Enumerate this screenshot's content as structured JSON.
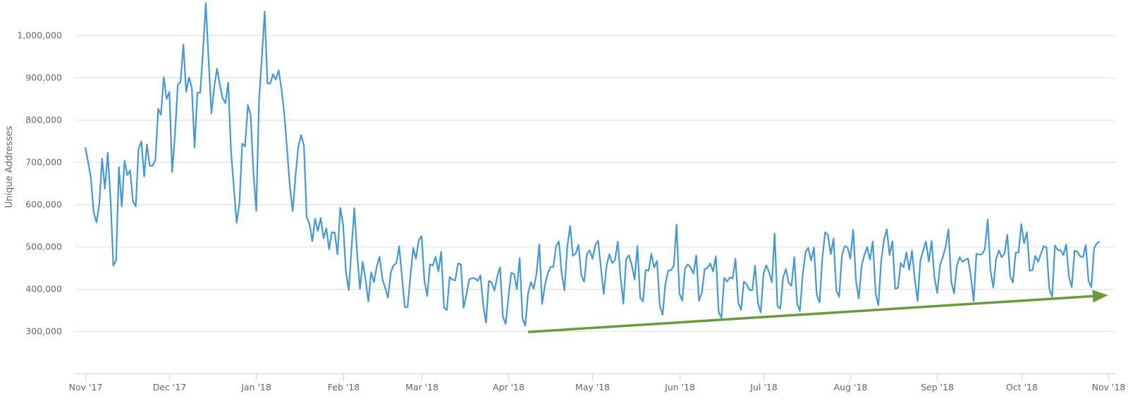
{
  "chart_data": {
    "type": "line",
    "title": "",
    "xlabel": "",
    "ylabel": "Unique Addresses",
    "ylim": [
      200000,
      1083000
    ],
    "xlim": [
      "2017-11-01",
      "2018-11-03"
    ],
    "grid": {
      "horizontal": true,
      "vertical": false
    },
    "legend": "none",
    "y_ticks": [
      {
        "value": 300000,
        "label": "300,000"
      },
      {
        "value": 400000,
        "label": "400,000"
      },
      {
        "value": 500000,
        "label": "500,000"
      },
      {
        "value": 600000,
        "label": "600,000"
      },
      {
        "value": 700000,
        "label": "700,000"
      },
      {
        "value": 800000,
        "label": "800,000"
      },
      {
        "value": 900000,
        "label": "900,000"
      },
      {
        "value": 1000000,
        "label": "1,000,000"
      }
    ],
    "x_ticks": [
      {
        "date": "2017-11-01",
        "label": "Nov '17"
      },
      {
        "date": "2017-12-01",
        "label": "Dec '17"
      },
      {
        "date": "2018-01-01",
        "label": "Jan '18"
      },
      {
        "date": "2018-02-01",
        "label": "Feb '18"
      },
      {
        "date": "2018-03-01",
        "label": "Mar '18"
      },
      {
        "date": "2018-04-01",
        "label": "Apr '18"
      },
      {
        "date": "2018-05-01",
        "label": "May '18"
      },
      {
        "date": "2018-06-01",
        "label": "Jun '18"
      },
      {
        "date": "2018-07-01",
        "label": "Jul '18"
      },
      {
        "date": "2018-08-01",
        "label": "Aug '18"
      },
      {
        "date": "2018-09-01",
        "label": "Sep '18"
      },
      {
        "date": "2018-10-01",
        "label": "Oct '18"
      },
      {
        "date": "2018-11-01",
        "label": "Nov '18"
      }
    ],
    "series": [
      {
        "color": "#4499d0",
        "daily_values_by_month": [
          {
            "month": "2017-11",
            "values": [
              735000,
              700000,
              663000,
              581000,
              557000,
              602000,
              708000,
              637000,
              722000,
              612000,
              455000,
              468000,
              688000,
              595000,
              703000,
              669000,
              680000,
              607000,
              595000,
              730000,
              749000,
              666000,
              742000,
              691000,
              691000,
              705000,
              826000,
              812000,
              901000,
              849000
            ]
          },
          {
            "month": "2017-12",
            "values": [
              866000,
              676000,
              765000,
              883000,
              890000,
              978000,
              866000,
              900000,
              875000,
              734000,
              864000,
              864000,
              963000,
              1076000,
              940000,
              815000,
              878000,
              921000,
              883000,
              851000,
              839000,
              888000,
              725000,
              641000,
              556000,
              602000,
              744000,
              737000,
              835000,
              812000,
              675000
            ]
          },
          {
            "month": "2018-01",
            "values": [
              584000,
              849000,
              946000,
              1056000,
              886000,
              886000,
              908000,
              895000,
              917000,
              873000,
              815000,
              730000,
              641000,
              584000,
              666000,
              736000,
              764000,
              739000,
              570000,
              553000,
              513000,
              566000,
              537000,
              568000,
              520000,
              543000,
              494000,
              534000,
              533000,
              482000,
              592000
            ]
          },
          {
            "month": "2018-02",
            "values": [
              552000,
              439000,
              397000,
              494000,
              591000,
              483000,
              400000,
              464000,
              422000,
              370000,
              439000,
              416000,
              453000,
              476000,
              423000,
              403000,
              379000,
              439000,
              456000,
              460000,
              501000,
              428000,
              357000,
              357000,
              428000,
              497000,
              471000,
              515000
            ]
          },
          {
            "month": "2018-03",
            "values": [
              525000,
              419000,
              383000,
              458000,
              455000,
              476000,
              441000,
              488000,
              356000,
              350000,
              428000,
              422000,
              420000,
              460000,
              458000,
              355000,
              386000,
              423000,
              425000,
              425000,
              419000,
              432000,
              361000,
              320000,
              419000,
              415000,
              396000,
              429000,
              451000,
              334000,
              317000
            ]
          },
          {
            "month": "2018-04",
            "values": [
              381000,
              438000,
              435000,
              399000,
              473000,
              331000,
              313000,
              390000,
              416000,
              400000,
              436000,
              505000,
              364000,
              408000,
              436000,
              452000,
              452000,
              501000,
              512000,
              436000,
              397000,
              499000,
              549000,
              478000,
              484000,
              504000,
              431000,
              417000,
              483000,
              491000
            ]
          },
          {
            "month": "2018-05",
            "values": [
              471000,
              504000,
              514000,
              450000,
              388000,
              455000,
              482000,
              461000,
              468000,
              512000,
              428000,
              365000,
              471000,
              479000,
              457000,
              422000,
              501000,
              379000,
              370000,
              445000,
              443000,
              483000,
              450000,
              466000,
              359000,
              339000,
              411000,
              443000,
              444000,
              455000,
              552000
            ]
          },
          {
            "month": "2018-06",
            "values": [
              389000,
              372000,
              448000,
              458000,
              450000,
              436000,
              479000,
              372000,
              390000,
              446000,
              450000,
              460000,
              441000,
              477000,
              345000,
              331000,
              426000,
              417000,
              427000,
              424000,
              471000,
              367000,
              350000,
              417000,
              411000,
              397000,
              397000,
              455000,
              368000,
              344000
            ]
          },
          {
            "month": "2018-07",
            "values": [
              436000,
              456000,
              439000,
              415000,
              531000,
              359000,
              353000,
              427000,
              447000,
              414000,
              407000,
              475000,
              364000,
              348000,
              433000,
              487000,
              497000,
              467000,
              498000,
              386000,
              368000,
              472000,
              534000,
              527000,
              482000,
              519000,
              396000,
              381000,
              480000,
              501000,
              498000
            ]
          },
          {
            "month": "2018-08",
            "values": [
              471000,
              540000,
              420000,
              377000,
              454000,
              480000,
              499000,
              469000,
              512000,
              390000,
              361000,
              466000,
              516000,
              541000,
              480000,
              513000,
              400000,
              403000,
              461000,
              451000,
              486000,
              445000,
              490000,
              422000,
              371000,
              467000,
              491000,
              512000,
              465000,
              513000,
              428000
            ]
          },
          {
            "month": "2018-09",
            "values": [
              390000,
              456000,
              476000,
              499000,
              541000,
              417000,
              389000,
              454000,
              475000,
              464000,
              469000,
              472000,
              430000,
              371000,
              483000,
              481000,
              482000,
              494000,
              564000,
              444000,
              403000,
              471000,
              491000,
              475000,
              483000,
              528000,
              430000,
              415000,
              486000,
              486000
            ]
          },
          {
            "month": "2018-10",
            "values": [
              553000,
              508000,
              534000,
              443000,
              444000,
              478000,
              464000,
              483000,
              501000,
              498000,
              400000,
              381000,
              503000,
              492000,
              491000,
              480000,
              505000,
              430000,
              404000,
              490000,
              488000,
              477000,
              475000,
              504000,
              419000,
              404000,
              497000,
              508000,
              512000
            ]
          }
        ]
      }
    ],
    "annotations": [
      {
        "type": "arrow",
        "color": "#6b9a3c",
        "start": {
          "date": "2018-04-08",
          "value": 298000
        },
        "end": {
          "date": "2018-11-01",
          "value": 385000
        }
      }
    ],
    "colors": {
      "grid": "#e0e0e0",
      "axis": "#ccd6eb",
      "text": "#666666"
    }
  }
}
